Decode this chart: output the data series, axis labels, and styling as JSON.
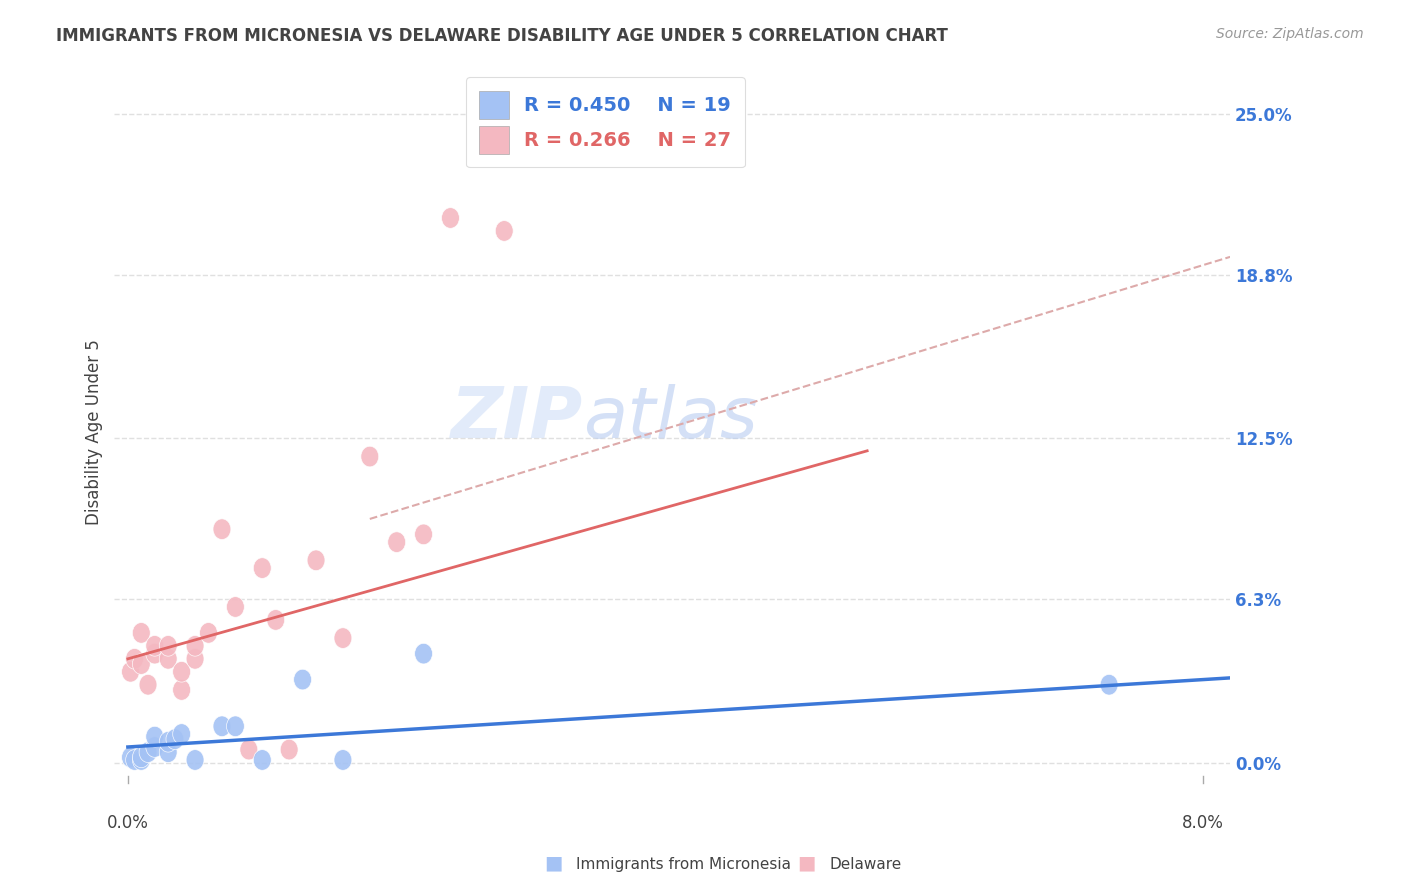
{
  "title": "IMMIGRANTS FROM MICRONESIA VS DELAWARE DISABILITY AGE UNDER 5 CORRELATION CHART",
  "source": "Source: ZipAtlas.com",
  "xlabel_blue": "Immigrants from Micronesia",
  "xlabel_pink": "Delaware",
  "ylabel": "Disability Age Under 5",
  "xlim": [
    -0.001,
    0.082
  ],
  "ylim": [
    -0.005,
    0.26
  ],
  "xtick_positions": [
    0.0,
    0.08
  ],
  "xtick_labels": [
    "0.0%",
    "8.0%"
  ],
  "ytick_positions": [
    0.0,
    0.063,
    0.125,
    0.188,
    0.25
  ],
  "ytick_labels": [
    "0.0%",
    "6.3%",
    "12.5%",
    "18.8%",
    "25.0%"
  ],
  "legend_blue_R": "0.450",
  "legend_blue_N": "19",
  "legend_pink_R": "0.266",
  "legend_pink_N": "27",
  "blue_color": "#a4c2f4",
  "pink_color": "#f4b8c1",
  "blue_line_color": "#3c78d8",
  "pink_line_color": "#e06666",
  "dashed_line_color": "#e06666",
  "grid_color": "#e0e0e0",
  "title_color": "#434343",
  "axis_label_color": "#434343",
  "source_color": "#999999",
  "right_tick_color": "#3c78d8",
  "watermark_text": "ZIPatlas",
  "watermark_color": "#c9daf8",
  "blue_points_x": [
    0.0002,
    0.0005,
    0.001,
    0.001,
    0.0015,
    0.002,
    0.002,
    0.003,
    0.003,
    0.0035,
    0.004,
    0.005,
    0.007,
    0.008,
    0.01,
    0.013,
    0.016,
    0.022,
    0.073
  ],
  "blue_points_y": [
    0.002,
    0.001,
    0.001,
    0.002,
    0.004,
    0.006,
    0.01,
    0.004,
    0.008,
    0.009,
    0.011,
    0.001,
    0.014,
    0.014,
    0.001,
    0.032,
    0.001,
    0.042,
    0.03
  ],
  "pink_points_x": [
    0.0002,
    0.0005,
    0.001,
    0.001,
    0.0015,
    0.002,
    0.002,
    0.003,
    0.003,
    0.004,
    0.004,
    0.005,
    0.005,
    0.006,
    0.007,
    0.008,
    0.009,
    0.01,
    0.011,
    0.012,
    0.014,
    0.016,
    0.018,
    0.02,
    0.022,
    0.024,
    0.028
  ],
  "pink_points_y": [
    0.035,
    0.04,
    0.038,
    0.05,
    0.03,
    0.042,
    0.045,
    0.04,
    0.045,
    0.028,
    0.035,
    0.04,
    0.045,
    0.05,
    0.09,
    0.06,
    0.005,
    0.075,
    0.055,
    0.005,
    0.078,
    0.048,
    0.118,
    0.085,
    0.088,
    0.21,
    0.205
  ],
  "pink_line_x0": 0.0,
  "pink_line_y0": 0.04,
  "pink_line_x1": 0.048,
  "pink_line_y1": 0.11,
  "blue_line_x0": 0.0,
  "blue_line_y0": 0.006,
  "blue_line_x1": 0.08,
  "blue_line_y1": 0.032,
  "dashed_line_x0": 0.025,
  "dashed_line_y0": 0.105,
  "dashed_line_x1": 0.082,
  "dashed_line_y1": 0.195,
  "background_color": "#ffffff"
}
